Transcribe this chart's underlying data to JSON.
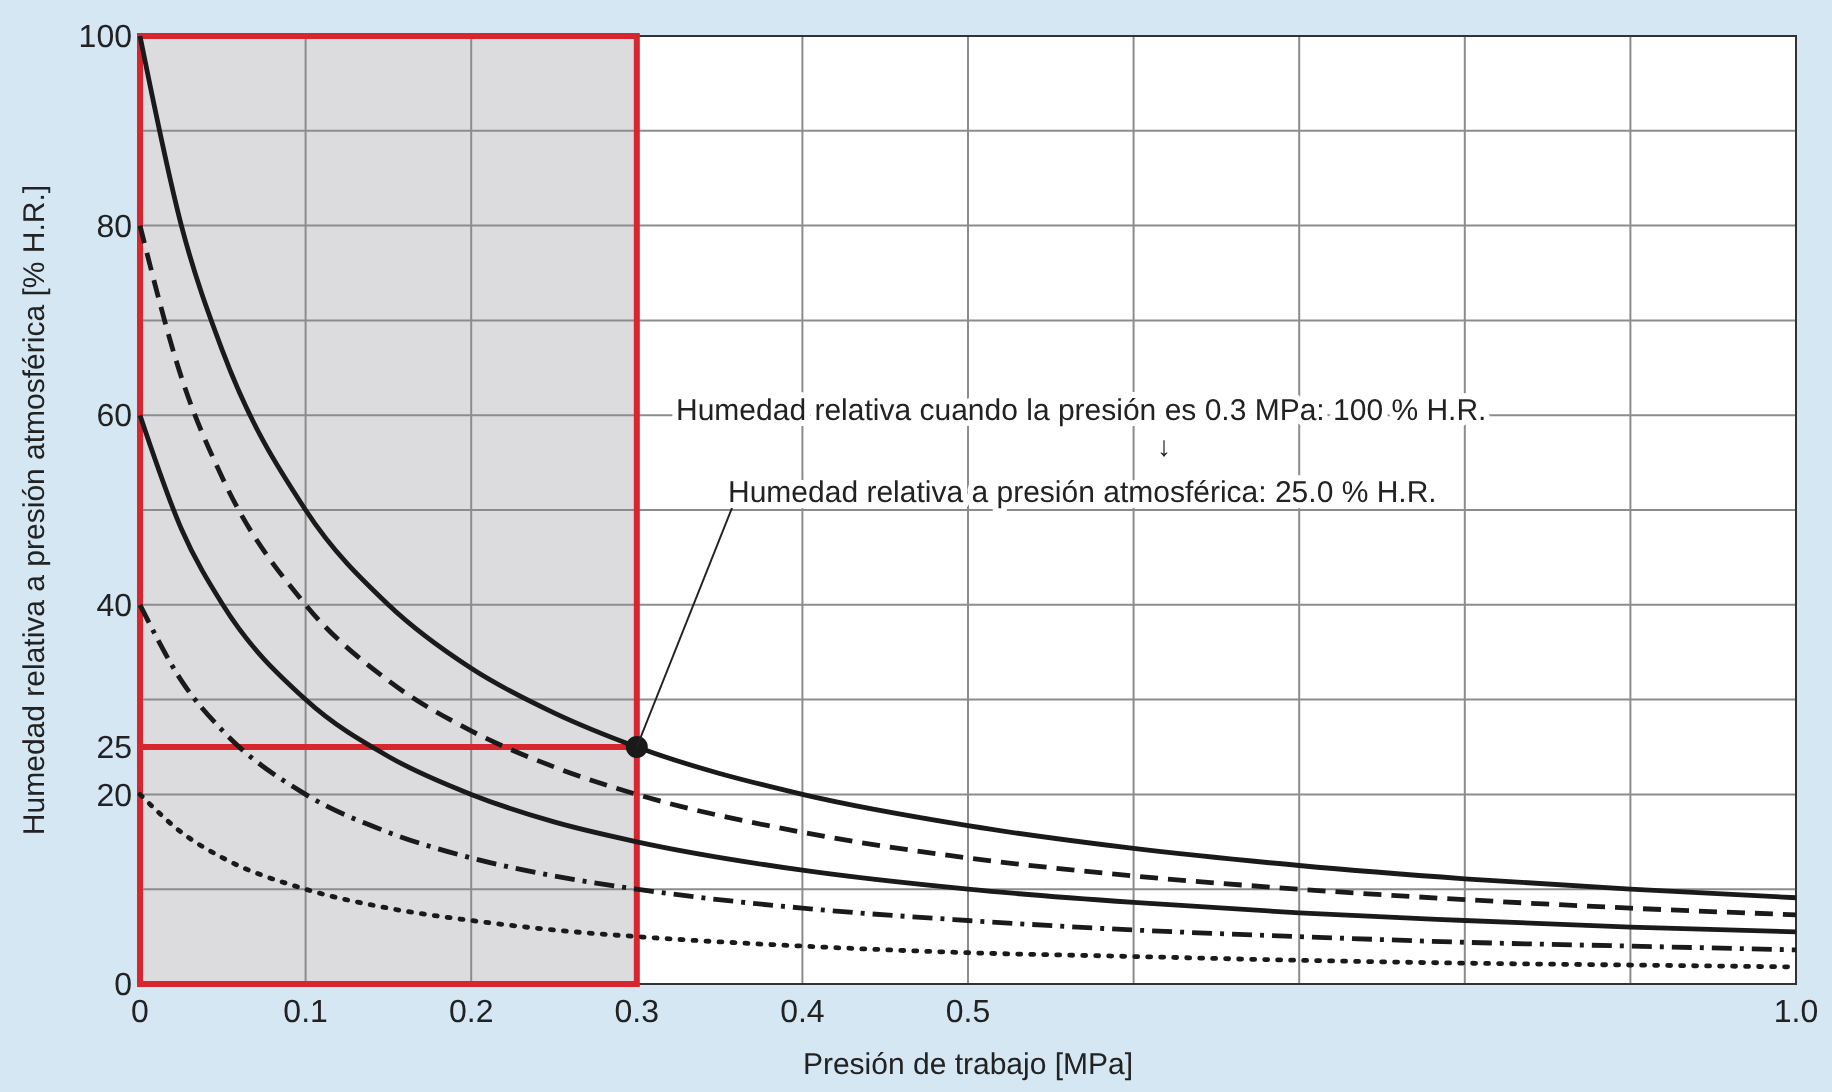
{
  "chart_data": {
    "type": "line",
    "xlabel": "Presión de trabajo [MPa]",
    "ylabel": "Humedad relativa a presión atmosférica [% H.R.]",
    "x": [
      0,
      0.025,
      0.05,
      0.1,
      0.15,
      0.2,
      0.25,
      0.3,
      0.4,
      0.5,
      0.6,
      0.7,
      0.8,
      0.9,
      1.0
    ],
    "series": [
      {
        "color": "#1a1a1a",
        "line_style": "solid",
        "values": [
          100,
          80,
          66.7,
          50,
          40,
          33.3,
          28.6,
          25,
          20,
          16.7,
          14.3,
          12.5,
          11.1,
          10,
          9.1
        ]
      },
      {
        "color": "#1a1a1a",
        "line_style": "dashed",
        "values": [
          80,
          64,
          53.3,
          40,
          32,
          26.7,
          22.9,
          20,
          16,
          13.3,
          11.4,
          10,
          8.9,
          8,
          7.3
        ]
      },
      {
        "color": "#1a1a1a",
        "line_style": "solid",
        "values": [
          60,
          48,
          40,
          30,
          24,
          20,
          17.1,
          15,
          12,
          10,
          8.6,
          7.5,
          6.7,
          6,
          5.5
        ]
      },
      {
        "color": "#1a1a1a",
        "line_style": "dashdot",
        "values": [
          40,
          32,
          26.7,
          20,
          16,
          13.3,
          11.4,
          10,
          8,
          6.7,
          5.7,
          5,
          4.4,
          4,
          3.6
        ]
      },
      {
        "color": "#1a1a1a",
        "line_style": "dotted",
        "values": [
          20,
          16,
          13.3,
          10,
          8,
          6.7,
          5.7,
          5,
          4,
          3.3,
          2.9,
          2.5,
          2.2,
          2,
          1.8
        ]
      },
      {
        "type": "scatter",
        "color": "#1a1a1a",
        "marker": "circle",
        "x": [
          0.3
        ],
        "values": [
          25
        ]
      }
    ],
    "xlim": [
      0,
      1.0
    ],
    "ylim": [
      0,
      100
    ],
    "xticks": [
      0,
      0.1,
      0.2,
      0.3,
      0.4,
      0.5,
      {
        "value": 0.6,
        "label": null
      },
      {
        "value": 0.7,
        "label": null
      },
      {
        "value": 0.8,
        "label": null
      },
      {
        "value": 0.9,
        "label": null
      },
      {
        "value": 1.0,
        "label": "1.0"
      }
    ],
    "yticks": [
      0,
      {
        "value": 10,
        "label": null
      },
      20,
      25,
      {
        "value": 30,
        "label": null
      },
      40,
      {
        "value": 50,
        "label": null
      },
      60,
      {
        "value": 70,
        "label": null
      },
      80,
      {
        "value": 90,
        "label": null
      },
      100
    ],
    "grid": true,
    "bands": [
      {
        "axis": "x",
        "from": 0,
        "to": 0.3,
        "color": "#dcdcde"
      }
    ],
    "ref_lines": [
      {
        "axis": "y",
        "value": 25,
        "color": "#d7262e"
      }
    ],
    "annotations": [
      "Humedad relativa cuando la presión es 0.3 MPa: 100 % H.R.",
      "↓",
      {
        "text": "Humedad relativa a presión atmosférica: 25.0 % H.R.",
        "x": 0.3,
        "y": 25
      }
    ]
  }
}
